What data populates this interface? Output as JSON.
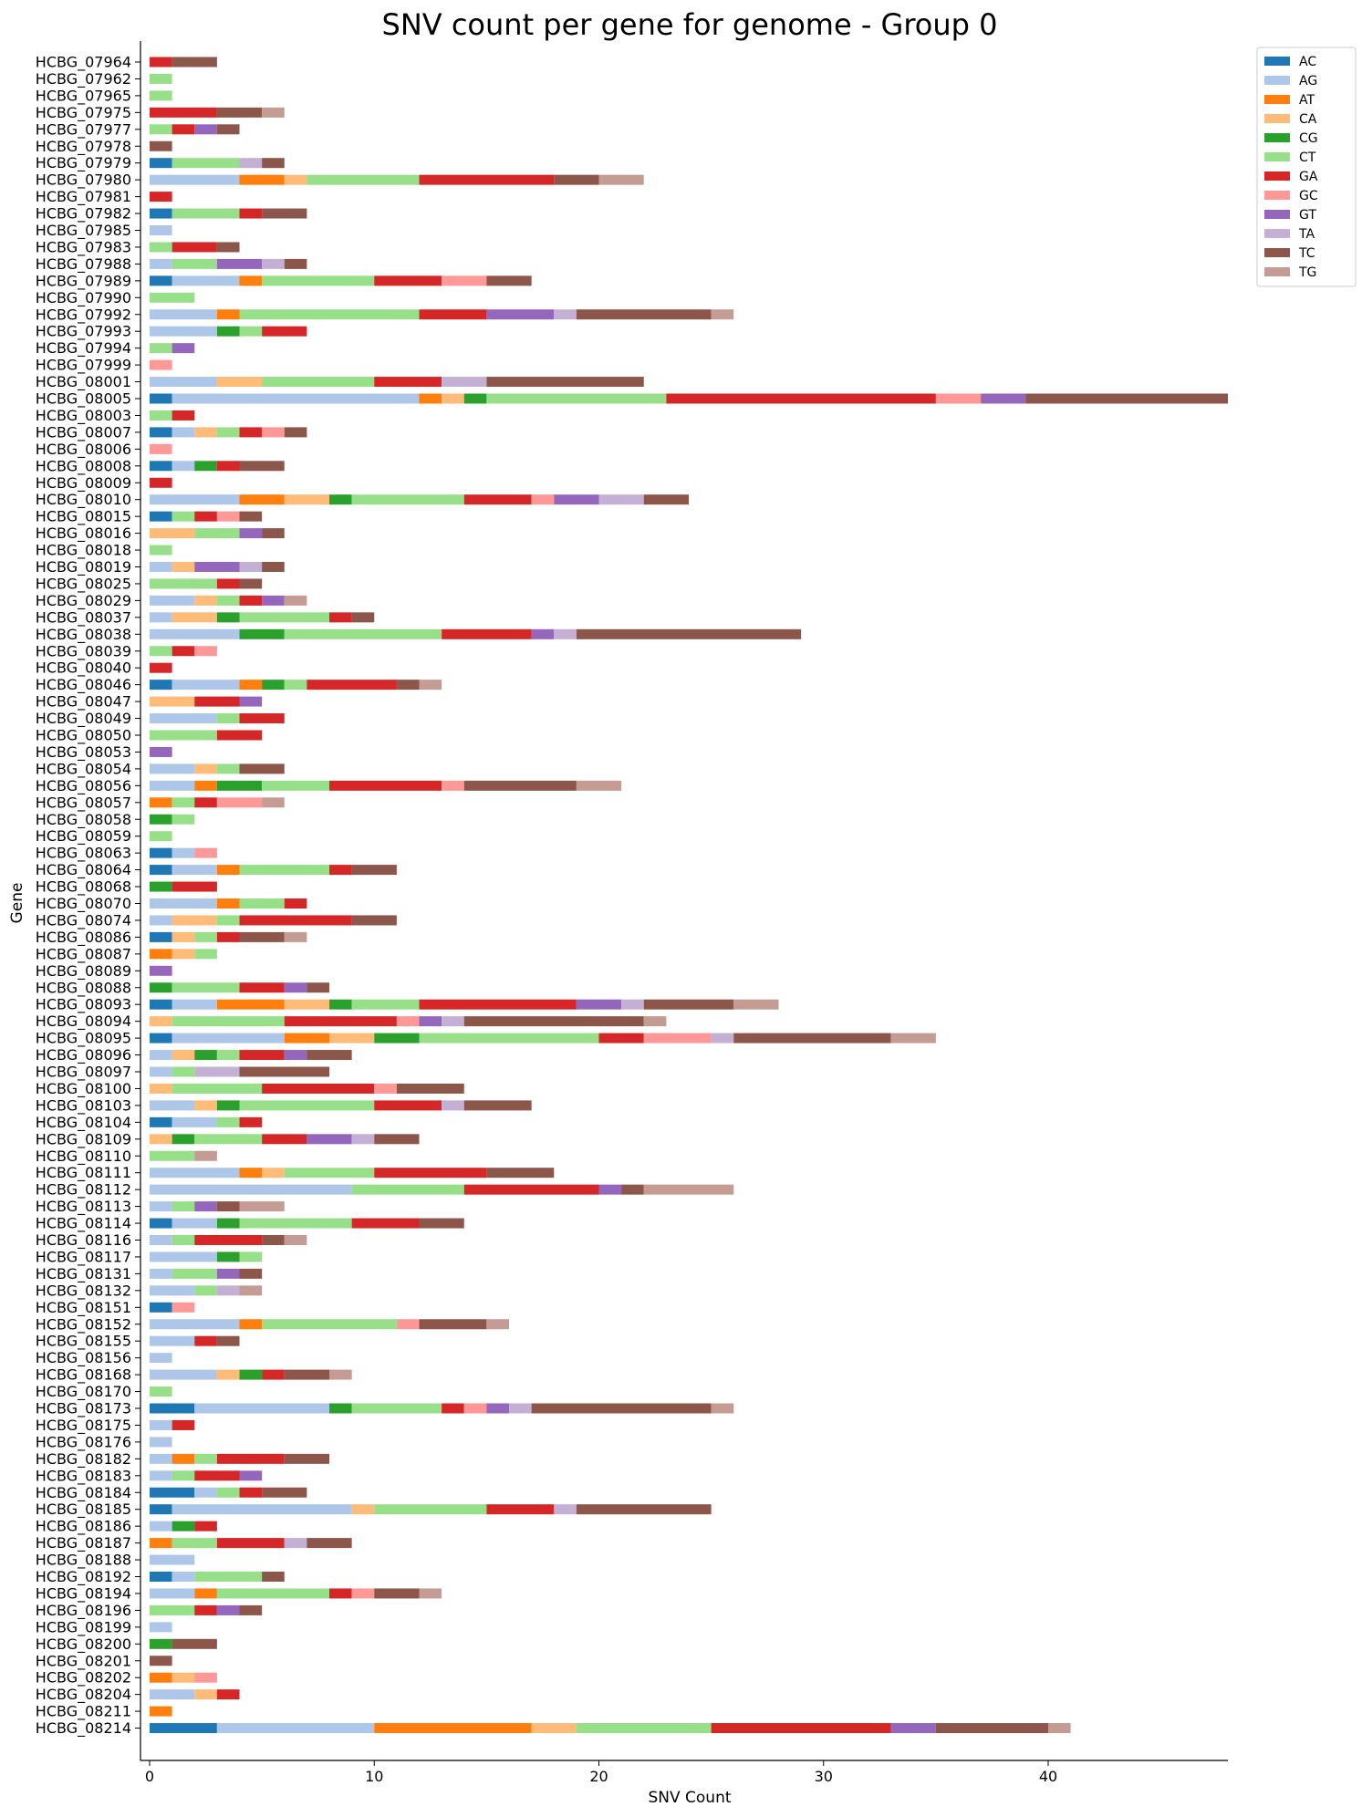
{
  "chart_data": {
    "type": "bar",
    "orientation": "horizontal",
    "stacked": true,
    "title": "SNV count per gene for genome - Group 0",
    "xlabel": "SNV Count",
    "ylabel": "Gene",
    "xlim": [
      0,
      48
    ],
    "xticks": [
      0,
      10,
      20,
      30,
      40
    ],
    "grid": false,
    "legend_position": "top-right",
    "series_names": [
      "AC",
      "AG",
      "AT",
      "CA",
      "CG",
      "CT",
      "GA",
      "GC",
      "GT",
      "TA",
      "TC",
      "TG"
    ],
    "colors": {
      "AC": "#1f77b4",
      "AG": "#aec7e8",
      "AT": "#ff7f0e",
      "CA": "#ffbb78",
      "CG": "#2ca02c",
      "CT": "#98df8a",
      "GA": "#d62728",
      "GC": "#ff9896",
      "GT": "#9467bd",
      "TA": "#c5b0d5",
      "TC": "#8c564b",
      "TG": "#c49c94"
    },
    "categories": [
      "HCBG_07964",
      "HCBG_07962",
      "HCBG_07965",
      "HCBG_07975",
      "HCBG_07977",
      "HCBG_07978",
      "HCBG_07979",
      "HCBG_07980",
      "HCBG_07981",
      "HCBG_07982",
      "HCBG_07985",
      "HCBG_07983",
      "HCBG_07988",
      "HCBG_07989",
      "HCBG_07990",
      "HCBG_07992",
      "HCBG_07993",
      "HCBG_07994",
      "HCBG_07999",
      "HCBG_08001",
      "HCBG_08005",
      "HCBG_08003",
      "HCBG_08007",
      "HCBG_08006",
      "HCBG_08008",
      "HCBG_08009",
      "HCBG_08010",
      "HCBG_08015",
      "HCBG_08016",
      "HCBG_08018",
      "HCBG_08019",
      "HCBG_08025",
      "HCBG_08029",
      "HCBG_08037",
      "HCBG_08038",
      "HCBG_08039",
      "HCBG_08040",
      "HCBG_08046",
      "HCBG_08047",
      "HCBG_08049",
      "HCBG_08050",
      "HCBG_08053",
      "HCBG_08054",
      "HCBG_08056",
      "HCBG_08057",
      "HCBG_08058",
      "HCBG_08059",
      "HCBG_08063",
      "HCBG_08064",
      "HCBG_08068",
      "HCBG_08070",
      "HCBG_08074",
      "HCBG_08086",
      "HCBG_08087",
      "HCBG_08089",
      "HCBG_08088",
      "HCBG_08093",
      "HCBG_08094",
      "HCBG_08095",
      "HCBG_08096",
      "HCBG_08097",
      "HCBG_08100",
      "HCBG_08103",
      "HCBG_08104",
      "HCBG_08109",
      "HCBG_08110",
      "HCBG_08111",
      "HCBG_08112",
      "HCBG_08113",
      "HCBG_08114",
      "HCBG_08116",
      "HCBG_08117",
      "HCBG_08131",
      "HCBG_08132",
      "HCBG_08151",
      "HCBG_08152",
      "HCBG_08155",
      "HCBG_08156",
      "HCBG_08168",
      "HCBG_08170",
      "HCBG_08173",
      "HCBG_08175",
      "HCBG_08176",
      "HCBG_08182",
      "HCBG_08183",
      "HCBG_08184",
      "HCBG_08185",
      "HCBG_08186",
      "HCBG_08187",
      "HCBG_08188",
      "HCBG_08192",
      "HCBG_08194",
      "HCBG_08196",
      "HCBG_08199",
      "HCBG_08200",
      "HCBG_08201",
      "HCBG_08202",
      "HCBG_08204",
      "HCBG_08211",
      "HCBG_08214"
    ],
    "series": [
      {
        "name": "AC",
        "values": [
          0,
          0,
          0,
          0,
          0,
          0,
          1,
          0,
          0,
          1,
          0,
          0,
          0,
          1,
          0,
          0,
          0,
          0,
          0,
          0,
          1,
          0,
          1,
          0,
          1,
          0,
          0,
          1,
          0,
          0,
          0,
          0,
          0,
          0,
          0,
          0,
          0,
          1,
          0,
          0,
          0,
          0,
          0,
          0,
          0,
          0,
          0,
          1,
          1,
          0,
          0,
          0,
          1,
          0,
          0,
          0,
          1,
          0,
          1,
          0,
          0,
          0,
          0,
          1,
          0,
          0,
          0,
          0,
          0,
          1,
          0,
          0,
          0,
          0,
          1,
          0,
          0,
          0,
          0,
          0,
          2,
          0,
          0,
          0,
          0,
          2,
          1,
          0,
          0,
          0,
          1,
          0,
          0,
          0,
          0,
          0,
          0,
          0,
          0,
          3
        ]
      },
      {
        "name": "AG",
        "values": [
          0,
          0,
          0,
          0,
          0,
          0,
          0,
          4,
          0,
          0,
          1,
          0,
          1,
          3,
          0,
          3,
          3,
          0,
          0,
          3,
          11,
          0,
          1,
          0,
          1,
          0,
          4,
          0,
          0,
          0,
          1,
          0,
          2,
          1,
          4,
          0,
          0,
          3,
          0,
          3,
          0,
          0,
          2,
          2,
          0,
          0,
          0,
          1,
          2,
          0,
          3,
          1,
          0,
          0,
          0,
          0,
          2,
          0,
          5,
          1,
          1,
          0,
          2,
          2,
          0,
          0,
          4,
          9,
          1,
          2,
          1,
          3,
          1,
          2,
          0,
          4,
          2,
          1,
          3,
          0,
          6,
          1,
          1,
          1,
          1,
          1,
          8,
          1,
          0,
          2,
          1,
          2,
          0,
          1,
          0,
          0,
          0,
          2,
          0,
          7
        ]
      },
      {
        "name": "AT",
        "values": [
          0,
          0,
          0,
          0,
          0,
          0,
          0,
          2,
          0,
          0,
          0,
          0,
          0,
          1,
          0,
          1,
          0,
          0,
          0,
          0,
          1,
          0,
          0,
          0,
          0,
          0,
          2,
          0,
          0,
          0,
          0,
          0,
          0,
          0,
          0,
          0,
          0,
          1,
          0,
          0,
          0,
          0,
          0,
          1,
          1,
          0,
          0,
          0,
          1,
          0,
          1,
          0,
          0,
          1,
          0,
          0,
          3,
          0,
          2,
          0,
          0,
          0,
          0,
          0,
          0,
          0,
          1,
          0,
          0,
          0,
          0,
          0,
          0,
          0,
          0,
          1,
          0,
          0,
          0,
          0,
          0,
          0,
          0,
          1,
          0,
          0,
          0,
          0,
          1,
          0,
          0,
          1,
          0,
          0,
          0,
          0,
          1,
          0,
          1,
          7
        ]
      },
      {
        "name": "CA",
        "values": [
          0,
          0,
          0,
          0,
          0,
          0,
          0,
          1,
          0,
          0,
          0,
          0,
          0,
          0,
          0,
          0,
          0,
          0,
          0,
          2,
          1,
          0,
          1,
          0,
          0,
          0,
          2,
          0,
          2,
          0,
          1,
          0,
          1,
          2,
          0,
          0,
          0,
          0,
          2,
          0,
          0,
          0,
          1,
          0,
          0,
          0,
          0,
          0,
          0,
          0,
          0,
          2,
          1,
          1,
          0,
          0,
          2,
          1,
          2,
          1,
          0,
          1,
          1,
          0,
          1,
          0,
          1,
          0,
          0,
          0,
          0,
          0,
          0,
          0,
          0,
          0,
          0,
          0,
          1,
          0,
          0,
          0,
          0,
          0,
          0,
          0,
          1,
          0,
          0,
          0,
          0,
          0,
          0,
          0,
          0,
          0,
          1,
          1,
          0,
          2
        ]
      },
      {
        "name": "CG",
        "values": [
          0,
          0,
          0,
          0,
          0,
          0,
          0,
          0,
          0,
          0,
          0,
          0,
          0,
          0,
          0,
          0,
          1,
          0,
          0,
          0,
          1,
          0,
          0,
          0,
          1,
          0,
          1,
          0,
          0,
          0,
          0,
          0,
          0,
          1,
          2,
          0,
          0,
          1,
          0,
          0,
          0,
          0,
          0,
          2,
          0,
          1,
          0,
          0,
          0,
          1,
          0,
          0,
          0,
          0,
          0,
          1,
          1,
          0,
          2,
          1,
          0,
          0,
          1,
          0,
          1,
          0,
          0,
          0,
          0,
          1,
          0,
          1,
          0,
          0,
          0,
          0,
          0,
          0,
          1,
          0,
          1,
          0,
          0,
          0,
          0,
          0,
          0,
          1,
          0,
          0,
          0,
          0,
          0,
          0,
          1,
          0,
          0,
          0,
          0,
          0
        ]
      },
      {
        "name": "CT",
        "values": [
          0,
          1,
          1,
          0,
          1,
          0,
          3,
          5,
          0,
          3,
          0,
          1,
          2,
          5,
          2,
          8,
          1,
          1,
          0,
          5,
          8,
          1,
          1,
          0,
          0,
          0,
          5,
          1,
          2,
          1,
          0,
          3,
          1,
          4,
          7,
          1,
          0,
          1,
          0,
          1,
          3,
          0,
          1,
          3,
          1,
          1,
          1,
          0,
          4,
          0,
          2,
          1,
          1,
          1,
          0,
          3,
          3,
          5,
          8,
          1,
          1,
          4,
          6,
          1,
          3,
          2,
          4,
          5,
          1,
          5,
          1,
          1,
          2,
          1,
          0,
          6,
          0,
          0,
          0,
          1,
          4,
          0,
          0,
          1,
          1,
          1,
          5,
          0,
          2,
          0,
          3,
          5,
          2,
          0,
          0,
          0,
          0,
          0,
          0,
          6
        ]
      },
      {
        "name": "GA",
        "values": [
          1,
          0,
          0,
          3,
          1,
          0,
          0,
          6,
          1,
          1,
          0,
          2,
          0,
          3,
          0,
          3,
          2,
          0,
          0,
          3,
          12,
          1,
          1,
          0,
          1,
          1,
          3,
          1,
          0,
          0,
          0,
          1,
          1,
          1,
          4,
          1,
          1,
          4,
          2,
          2,
          2,
          0,
          0,
          5,
          1,
          0,
          0,
          0,
          1,
          2,
          1,
          5,
          1,
          0,
          0,
          2,
          7,
          5,
          2,
          2,
          0,
          5,
          3,
          1,
          2,
          0,
          5,
          6,
          0,
          3,
          3,
          0,
          0,
          0,
          0,
          0,
          1,
          0,
          1,
          0,
          1,
          1,
          0,
          3,
          2,
          1,
          3,
          1,
          3,
          0,
          0,
          1,
          1,
          0,
          0,
          0,
          0,
          1,
          0,
          8
        ]
      },
      {
        "name": "GC",
        "values": [
          0,
          0,
          0,
          0,
          0,
          0,
          0,
          0,
          0,
          0,
          0,
          0,
          0,
          2,
          0,
          0,
          0,
          0,
          1,
          0,
          2,
          0,
          1,
          1,
          0,
          0,
          1,
          1,
          0,
          0,
          0,
          0,
          0,
          0,
          0,
          1,
          0,
          0,
          0,
          0,
          0,
          0,
          0,
          1,
          2,
          0,
          0,
          1,
          0,
          0,
          0,
          0,
          0,
          0,
          0,
          0,
          0,
          1,
          3,
          0,
          0,
          1,
          0,
          0,
          0,
          0,
          0,
          0,
          0,
          0,
          0,
          0,
          0,
          0,
          1,
          1,
          0,
          0,
          0,
          0,
          1,
          0,
          0,
          0,
          0,
          0,
          0,
          0,
          0,
          0,
          0,
          1,
          0,
          0,
          0,
          0,
          1,
          0,
          0,
          0
        ]
      },
      {
        "name": "GT",
        "values": [
          0,
          0,
          0,
          0,
          1,
          0,
          0,
          0,
          0,
          0,
          0,
          0,
          2,
          0,
          0,
          3,
          0,
          1,
          0,
          0,
          2,
          0,
          0,
          0,
          0,
          0,
          2,
          0,
          1,
          0,
          2,
          0,
          1,
          0,
          1,
          0,
          0,
          0,
          1,
          0,
          0,
          1,
          0,
          0,
          0,
          0,
          0,
          0,
          0,
          0,
          0,
          0,
          0,
          0,
          1,
          1,
          2,
          1,
          0,
          1,
          0,
          0,
          0,
          0,
          2,
          0,
          0,
          1,
          1,
          0,
          0,
          0,
          1,
          0,
          0,
          0,
          0,
          0,
          0,
          0,
          1,
          0,
          0,
          0,
          1,
          0,
          0,
          0,
          0,
          0,
          0,
          0,
          1,
          0,
          0,
          0,
          0,
          0,
          0,
          2
        ]
      },
      {
        "name": "TA",
        "values": [
          0,
          0,
          0,
          0,
          0,
          0,
          1,
          0,
          0,
          0,
          0,
          0,
          1,
          0,
          0,
          1,
          0,
          0,
          0,
          2,
          0,
          0,
          0,
          0,
          0,
          0,
          2,
          0,
          0,
          0,
          1,
          0,
          0,
          0,
          1,
          0,
          0,
          0,
          0,
          0,
          0,
          0,
          0,
          0,
          0,
          0,
          0,
          0,
          0,
          0,
          0,
          0,
          0,
          0,
          0,
          0,
          1,
          1,
          1,
          0,
          2,
          0,
          1,
          0,
          1,
          0,
          0,
          0,
          0,
          0,
          0,
          0,
          0,
          1,
          0,
          0,
          0,
          0,
          0,
          0,
          1,
          0,
          0,
          0,
          0,
          0,
          1,
          0,
          1,
          0,
          0,
          0,
          0,
          0,
          0,
          0,
          0,
          0,
          0,
          0
        ]
      },
      {
        "name": "TC",
        "values": [
          2,
          0,
          0,
          2,
          1,
          1,
          1,
          2,
          0,
          2,
          0,
          1,
          1,
          2,
          0,
          6,
          0,
          0,
          0,
          7,
          9,
          0,
          1,
          0,
          2,
          0,
          2,
          1,
          1,
          0,
          1,
          1,
          0,
          1,
          10,
          0,
          0,
          1,
          0,
          0,
          0,
          0,
          2,
          5,
          0,
          0,
          0,
          0,
          2,
          0,
          0,
          2,
          2,
          0,
          0,
          1,
          4,
          8,
          7,
          2,
          4,
          3,
          3,
          0,
          2,
          0,
          3,
          1,
          1,
          2,
          1,
          0,
          1,
          0,
          0,
          3,
          1,
          0,
          2,
          0,
          8,
          0,
          0,
          2,
          0,
          2,
          6,
          0,
          2,
          0,
          1,
          2,
          1,
          0,
          2,
          1,
          0,
          0,
          0,
          5
        ]
      },
      {
        "name": "TG",
        "values": [
          0,
          0,
          0,
          1,
          0,
          0,
          0,
          2,
          0,
          0,
          0,
          0,
          0,
          0,
          0,
          1,
          0,
          0,
          0,
          0,
          0,
          0,
          0,
          0,
          0,
          0,
          0,
          0,
          0,
          0,
          0,
          0,
          1,
          0,
          0,
          0,
          0,
          1,
          0,
          0,
          0,
          0,
          0,
          2,
          1,
          0,
          0,
          0,
          0,
          0,
          0,
          0,
          1,
          0,
          0,
          0,
          2,
          1,
          2,
          0,
          0,
          0,
          0,
          0,
          0,
          1,
          0,
          4,
          2,
          0,
          1,
          0,
          0,
          1,
          0,
          1,
          0,
          0,
          1,
          0,
          1,
          0,
          0,
          0,
          0,
          0,
          0,
          0,
          0,
          0,
          0,
          1,
          0,
          0,
          0,
          0,
          0,
          0,
          0,
          1
        ]
      }
    ]
  }
}
